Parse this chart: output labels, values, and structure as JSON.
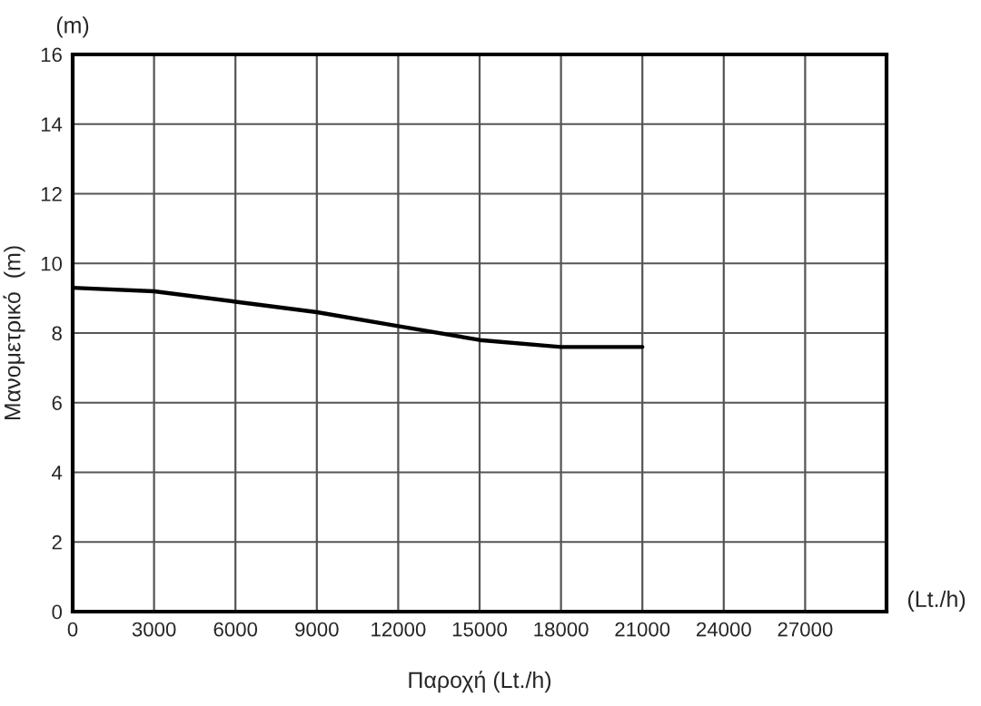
{
  "chart_data": {
    "type": "line",
    "xlabel": "Παροχή (Lt./h)",
    "ylabel": "Μανομετρικό  (m)",
    "annotations": [
      "(m)",
      "(Lt./h)"
    ],
    "x": [
      0,
      3000,
      6000,
      9000,
      12000,
      15000,
      18000,
      21000
    ],
    "series": [
      {
        "color": "#000000",
        "values": [
          9.3,
          9.2,
          8.9,
          8.6,
          8.2,
          7.8,
          7.6,
          7.6
        ]
      }
    ],
    "xlim": [
      0,
      30000
    ],
    "xticks": [
      0,
      3000,
      6000,
      9000,
      12000,
      15000,
      18000,
      21000,
      24000,
      27000
    ],
    "ylim": [
      0,
      16
    ],
    "yticks": [
      0,
      2,
      4,
      6,
      8,
      10,
      12,
      14,
      16
    ],
    "grid": true,
    "marker": "none",
    "line_style": "solid"
  }
}
